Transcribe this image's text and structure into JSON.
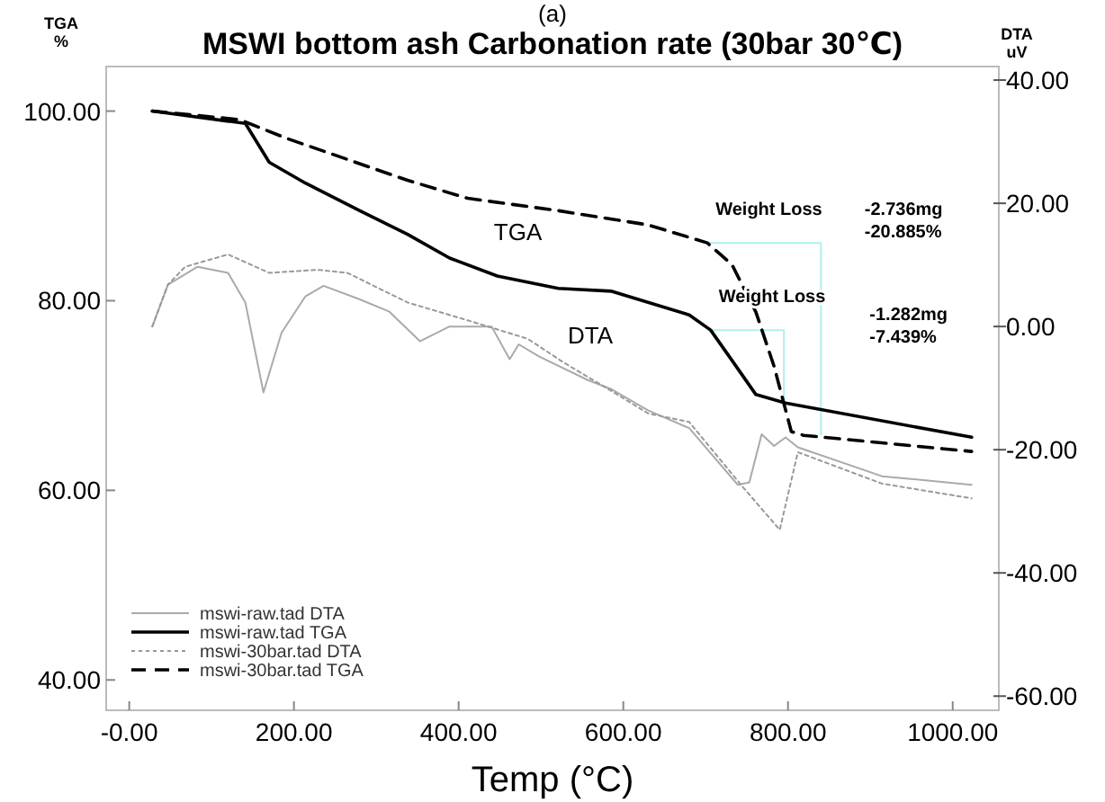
{
  "chart_data": {
    "type": "line",
    "title": "MSWI bottom ash Carbonation rate (30bar 30℃)",
    "subtitle": "(a)",
    "xlabel": "Temp (°C)",
    "ylabel": "TGA %",
    "y2label": "DTA uV",
    "xlim": [
      -28,
      1056
    ],
    "ylim": [
      36.8,
      104.7
    ],
    "y2lim": [
      -62.3,
      42.2
    ],
    "xticks": [
      {
        "value": 0,
        "label": "-0.00"
      },
      {
        "value": 200,
        "label": "200.00"
      },
      {
        "value": 400,
        "label": "400.00"
      },
      {
        "value": 600,
        "label": "600.00"
      },
      {
        "value": 800,
        "label": "800.00"
      },
      {
        "value": 1000,
        "label": "1000.00"
      }
    ],
    "yticks": [
      {
        "value": 40,
        "label": "40.00"
      },
      {
        "value": 60,
        "label": "60.00"
      },
      {
        "value": 80,
        "label": "80.00"
      },
      {
        "value": 100,
        "label": "100.00"
      }
    ],
    "y2ticks": [
      {
        "value": -60,
        "label": "-60.00"
      },
      {
        "value": -40,
        "label": "-40.00"
      },
      {
        "value": -20,
        "label": "-20.00"
      },
      {
        "value": 0,
        "label": "0.00"
      },
      {
        "value": 20,
        "label": "20.00"
      },
      {
        "value": 40,
        "label": "40.00"
      }
    ],
    "grid": false,
    "legend": "bottom left",
    "marker": "none",
    "series": [
      {
        "name": "mswi-raw.tad DTA",
        "color": "#aaaaaa",
        "axis": "y2",
        "line_style": "solid",
        "x": [
          28,
          47,
          83,
          120,
          141,
          163,
          185,
          214,
          236,
          280,
          316,
          353,
          389,
          440,
          462,
          473,
          498,
          557,
          586,
          630,
          680,
          739,
          753,
          768,
          783,
          797,
          812,
          914,
          1023
        ],
        "values": [
          0,
          6.8,
          9.7,
          8.7,
          3.9,
          -10.7,
          -1.0,
          4.9,
          6.6,
          4.4,
          2.4,
          -2.4,
          0,
          0,
          -5.3,
          -2.9,
          -4.9,
          -8.7,
          -10.2,
          -13.6,
          -16.5,
          -25.7,
          -25.3,
          -17.5,
          -19.4,
          -18,
          -19.6,
          -24.3,
          -25.7
        ]
      },
      {
        "name": "mswi-raw.tad TGA",
        "color": "#000000",
        "axis": "y",
        "line_style": "solid",
        "x": [
          28,
          141,
          170,
          214,
          280,
          338,
          389,
          447,
          521,
          586,
          680,
          706,
          732,
          761,
          797,
          1023
        ],
        "values": [
          100,
          98.7,
          94.6,
          92.4,
          89.5,
          87.0,
          84.5,
          82.6,
          81.3,
          81.0,
          78.5,
          76.9,
          73.7,
          70.1,
          69.2,
          65.6
        ]
      },
      {
        "name": "mswi-30bar.tad DTA",
        "color": "#999999",
        "axis": "y2",
        "line_style": "dotted",
        "x": [
          28,
          47,
          68,
          120,
          170,
          229,
          265,
          338,
          411,
          484,
          527,
          586,
          630,
          680,
          746,
          790,
          812,
          914,
          1023
        ],
        "values": [
          0,
          6.8,
          9.7,
          11.7,
          8.7,
          9.2,
          8.7,
          3.9,
          1.0,
          -2.0,
          -5.8,
          -10.5,
          -14.1,
          -15.5,
          -26.2,
          -33.0,
          -20.4,
          -25.5,
          -27.9
        ]
      },
      {
        "name": "mswi-30bar.tad TGA",
        "color": "#000000",
        "axis": "y",
        "line_style": "dashed",
        "x": [
          28,
          134,
          192,
          265,
          338,
          411,
          521,
          586,
          630,
          702,
          732,
          761,
          783,
          804,
          819,
          1023
        ],
        "values": [
          100,
          99.1,
          97.1,
          94.9,
          92.7,
          90.8,
          89.5,
          88.6,
          88.0,
          86.1,
          83.8,
          78.8,
          73.1,
          66.2,
          65.8,
          64.1
        ]
      }
    ],
    "annotations": [
      {
        "text": "Weight Loss",
        "x": 702,
        "y": 86.1
      },
      "-2.736mg",
      "-20.885%",
      {
        "text": "Weight Loss",
        "x": 706,
        "y": 76.9
      },
      "-1.282mg",
      "-7.439%",
      "TGA",
      "DTA"
    ]
  }
}
